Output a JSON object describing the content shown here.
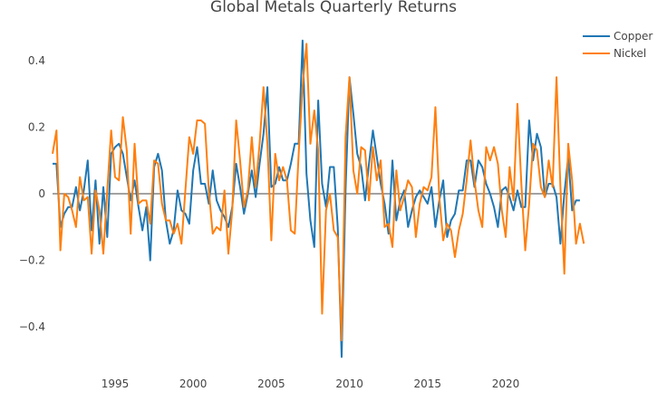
{
  "chart_data": {
    "type": "line",
    "title": "Global Metals Quarterly Returns",
    "xlabel": "",
    "ylabel": "",
    "xlim": [
      1991.0,
      2024.0
    ],
    "ylim": [
      -0.5,
      0.5
    ],
    "grid": false,
    "zero_line": true,
    "legend_position": "top-right",
    "x_ticks": [
      1995,
      2000,
      2005,
      2010,
      2015,
      2020
    ],
    "x_tick_labels": [
      "1995",
      "2000",
      "2005",
      "2010",
      "2015",
      "2020"
    ],
    "y_ticks": [
      -0.4,
      -0.2,
      0,
      0.2,
      0.4
    ],
    "y_tick_labels": [
      "−0.4",
      "−0.2",
      "0",
      "0.2",
      "0.4"
    ],
    "x_start": 1991.0,
    "x_step": 0.25,
    "series": [
      {
        "name": "Copper",
        "color": "#1f77b4",
        "values": [
          0.09,
          0.09,
          -0.1,
          -0.06,
          -0.04,
          -0.04,
          0.02,
          -0.05,
          0.01,
          0.1,
          -0.11,
          0.04,
          -0.15,
          0.02,
          -0.13,
          0.12,
          0.14,
          0.15,
          0.12,
          0.05,
          -0.02,
          0.04,
          -0.04,
          -0.11,
          -0.04,
          -0.2,
          0.08,
          0.12,
          0.07,
          -0.08,
          -0.15,
          -0.11,
          0.01,
          -0.05,
          -0.06,
          -0.09,
          0.07,
          0.14,
          0.03,
          0.03,
          -0.03,
          0.07,
          -0.02,
          -0.05,
          -0.07,
          -0.1,
          -0.04,
          0.09,
          0.02,
          -0.06,
          0.0,
          0.07,
          -0.01,
          0.09,
          0.18,
          0.32,
          0.02,
          0.03,
          0.08,
          0.04,
          0.04,
          0.09,
          0.15,
          0.15,
          0.46,
          0.06,
          -0.08,
          -0.16,
          0.28,
          0.03,
          -0.04,
          0.08,
          0.08,
          -0.1,
          -0.49,
          0.01,
          0.35,
          0.24,
          0.12,
          0.08,
          -0.02,
          0.09,
          0.19,
          0.11,
          0.03,
          -0.03,
          -0.12,
          0.1,
          -0.08,
          -0.02,
          0.01,
          -0.1,
          -0.05,
          -0.01,
          0.01,
          -0.01,
          -0.03,
          0.02,
          -0.1,
          -0.02,
          0.04,
          -0.13,
          -0.08,
          -0.06,
          0.01,
          0.01,
          0.1,
          0.1,
          0.02,
          0.1,
          0.08,
          0.03,
          0.0,
          -0.04,
          -0.1,
          0.01,
          0.02,
          -0.01,
          -0.05,
          0.01,
          -0.04,
          -0.04,
          0.22,
          0.1,
          0.18,
          0.14,
          -0.01,
          0.03,
          0.03,
          -0.01,
          -0.15,
          0.0,
          0.11,
          -0.05,
          -0.02,
          -0.02
        ]
      },
      {
        "name": "Nickel",
        "color": "#ff7f0e",
        "values": [
          0.12,
          0.19,
          -0.17,
          0.0,
          -0.01,
          -0.05,
          -0.1,
          0.05,
          -0.02,
          -0.01,
          -0.18,
          0.01,
          -0.05,
          -0.18,
          0.01,
          0.19,
          0.05,
          0.04,
          0.23,
          0.13,
          -0.12,
          0.15,
          -0.03,
          -0.02,
          -0.02,
          -0.09,
          0.1,
          0.09,
          -0.03,
          -0.08,
          -0.08,
          -0.12,
          -0.09,
          -0.15,
          0.01,
          0.17,
          0.12,
          0.22,
          0.22,
          0.21,
          0.01,
          -0.12,
          -0.1,
          -0.11,
          0.01,
          -0.18,
          -0.05,
          0.22,
          0.1,
          -0.04,
          0.01,
          0.17,
          0.02,
          0.15,
          0.32,
          0.15,
          -0.14,
          0.12,
          0.04,
          0.08,
          0.04,
          -0.11,
          -0.12,
          0.12,
          0.32,
          0.45,
          0.15,
          0.25,
          0.13,
          -0.36,
          -0.05,
          0.0,
          -0.11,
          -0.13,
          -0.44,
          0.17,
          0.35,
          0.07,
          0.0,
          0.14,
          0.13,
          -0.02,
          0.14,
          0.04,
          0.1,
          -0.1,
          -0.09,
          -0.16,
          0.07,
          -0.05,
          -0.01,
          0.04,
          0.02,
          -0.13,
          -0.03,
          0.02,
          0.01,
          0.05,
          0.26,
          -0.01,
          -0.14,
          -0.09,
          -0.11,
          -0.19,
          -0.11,
          -0.06,
          0.04,
          0.16,
          0.04,
          -0.05,
          -0.1,
          0.14,
          0.1,
          0.14,
          0.09,
          -0.05,
          -0.13,
          0.08,
          -0.02,
          0.27,
          0.03,
          -0.17,
          -0.03,
          0.15,
          0.13,
          0.02,
          -0.01,
          0.1,
          0.02,
          0.35,
          0.02,
          -0.24,
          0.15,
          0.04,
          -0.15,
          -0.09,
          -0.15
        ]
      }
    ]
  }
}
